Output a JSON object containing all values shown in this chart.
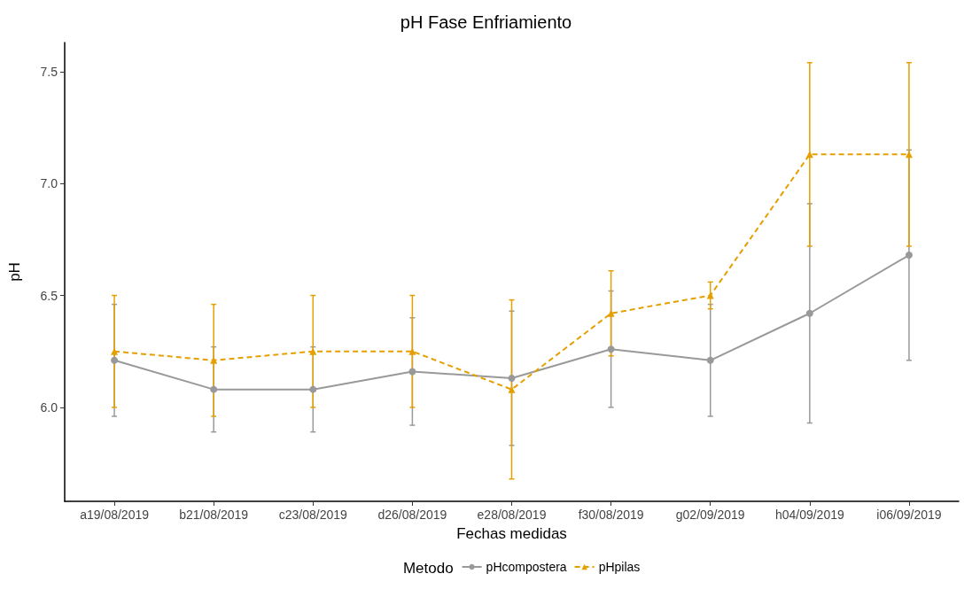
{
  "chart_data": {
    "type": "line",
    "title": "pH Fase Enfriamiento",
    "xlabel": "Fechas medidas",
    "ylabel": "pH",
    "legend_title": "Metodo",
    "categories": [
      "a19/08/2019",
      "b21/08/2019",
      "c23/08/2019",
      "d26/08/2019",
      "e28/08/2019",
      "f30/08/2019",
      "g02/09/2019",
      "h04/09/2019",
      "i06/09/2019"
    ],
    "series": [
      {
        "name": "pHcompostera",
        "color": "#999999",
        "marker": "circle",
        "line_style": "solid",
        "values": [
          6.21,
          6.08,
          6.08,
          6.16,
          6.13,
          6.26,
          6.21,
          6.42,
          6.68
        ],
        "errors": [
          [
            5.96,
            6.46
          ],
          [
            5.89,
            6.27
          ],
          [
            5.89,
            6.27
          ],
          [
            5.92,
            6.4
          ],
          [
            5.83,
            6.43
          ],
          [
            6.0,
            6.52
          ],
          [
            5.96,
            6.46
          ],
          [
            5.93,
            6.91
          ],
          [
            6.21,
            7.15
          ]
        ]
      },
      {
        "name": "pHpilas",
        "color": "#e69f00",
        "marker": "triangle",
        "line_style": "dashed",
        "values": [
          6.25,
          6.21,
          6.25,
          6.25,
          6.08,
          6.42,
          6.5,
          7.13,
          7.13
        ],
        "errors": [
          [
            6.0,
            6.5
          ],
          [
            5.96,
            6.46
          ],
          [
            6.0,
            6.5
          ],
          [
            6.0,
            6.5
          ],
          [
            5.68,
            6.48
          ],
          [
            6.23,
            6.61
          ],
          [
            6.44,
            6.56
          ],
          [
            6.72,
            7.54
          ],
          [
            6.72,
            7.54
          ]
        ]
      }
    ],
    "ylim": [
      5.58,
      7.63
    ],
    "yticks": [
      {
        "value": 6,
        "label": "6.0"
      },
      {
        "value": 6.5,
        "label": "6.5"
      },
      {
        "value": 7,
        "label": "7.0"
      },
      {
        "value": 7.5,
        "label": "7.5"
      }
    ],
    "grid": false,
    "legend": "bottom"
  }
}
